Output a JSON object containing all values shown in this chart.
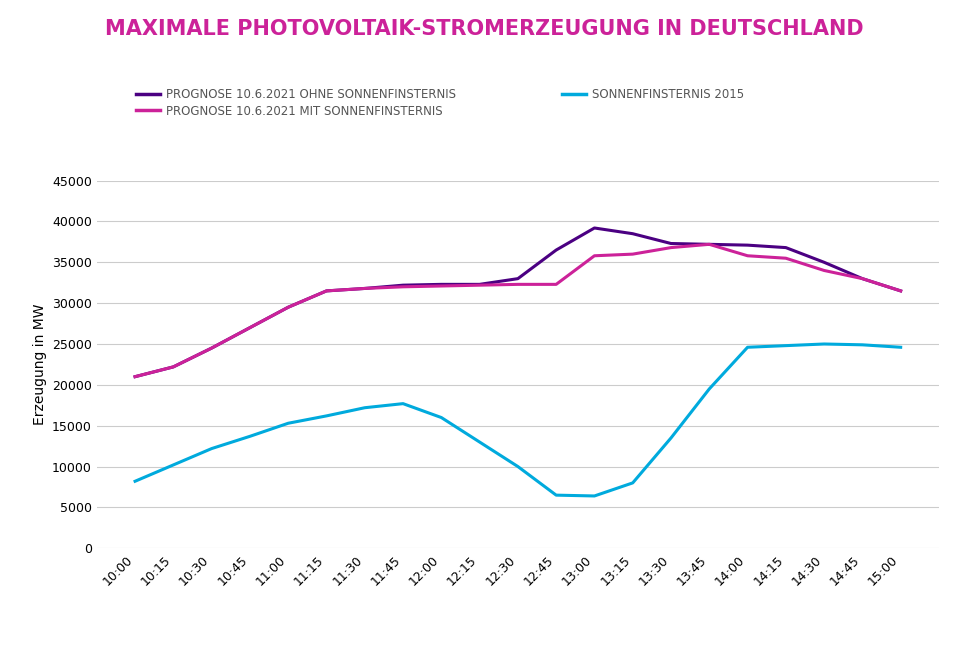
{
  "title": "MAXIMALE PHOTOVOLTAIK-STROMERZEUGUNG IN DEUTSCHLAND",
  "ylabel": "Erzeugung in MW",
  "background_color": "#ffffff",
  "grid_color": "#cccccc",
  "time_labels": [
    "10:00",
    "10:15",
    "10:30",
    "10:45",
    "11:00",
    "11:15",
    "11:30",
    "11:45",
    "12:00",
    "12:15",
    "12:30",
    "12:45",
    "13:00",
    "13:15",
    "13:30",
    "13:45",
    "14:00",
    "14:15",
    "14:30",
    "14:45",
    "15:00"
  ],
  "ylim": [
    0,
    45000
  ],
  "yticks": [
    0,
    5000,
    10000,
    15000,
    20000,
    25000,
    30000,
    35000,
    40000,
    45000
  ],
  "series": {
    "ohne": {
      "label": "PROGNOSE 10.6.2021 OHNE SONNENFINSTERNIS",
      "color": "#4B0082",
      "linewidth": 2.2,
      "values": [
        21000,
        22200,
        24500,
        27000,
        29500,
        31500,
        31800,
        32200,
        32300,
        32300,
        33000,
        36500,
        39200,
        38500,
        37300,
        37200,
        37100,
        36800,
        35000,
        33000,
        31500
      ]
    },
    "mit": {
      "label": "PROGNOSE 10.6.2021 MIT SONNENFINSTERNIS",
      "color": "#CC2299",
      "linewidth": 2.2,
      "values": [
        21000,
        22200,
        24500,
        27000,
        29500,
        31500,
        31800,
        32000,
        32100,
        32200,
        32300,
        32300,
        35800,
        36000,
        36800,
        37200,
        35800,
        35500,
        34000,
        33000,
        31500
      ]
    },
    "eclipse": {
      "label": "SONNENFINSTERNIS 2015",
      "color": "#00AADD",
      "linewidth": 2.2,
      "values": [
        8200,
        10200,
        12200,
        13700,
        15300,
        16200,
        17200,
        17700,
        16000,
        13000,
        10000,
        6500,
        6400,
        8000,
        13500,
        19500,
        24600,
        24800,
        25000,
        24900,
        24600
      ]
    }
  },
  "title_fontsize": 15,
  "title_color": "#CC2299",
  "legend_fontsize": 8.5,
  "legend_text_color": "#555555",
  "tick_fontsize": 9,
  "ylabel_fontsize": 10
}
